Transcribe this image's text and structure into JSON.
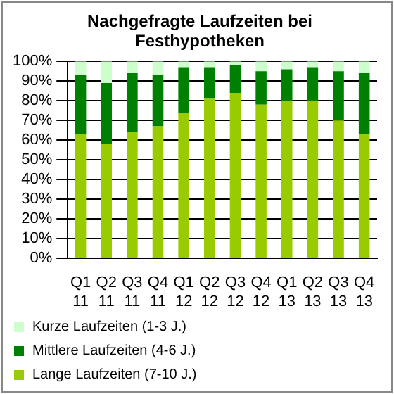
{
  "chart_data": {
    "type": "bar",
    "stacked": true,
    "title": "Nachgefragte Laufzeiten bei Festhypotheken",
    "categories": [
      "Q1 11",
      "Q2 11",
      "Q3 11",
      "Q4 11",
      "Q1 12",
      "Q2 12",
      "Q3 12",
      "Q4 12",
      "Q1 13",
      "Q2 13",
      "Q3 13",
      "Q4 13"
    ],
    "series": [
      {
        "name": "Lange Laufzeiten (7-10 J.)",
        "color": "#99cc00",
        "values": [
          63,
          58,
          64,
          67,
          74,
          81,
          84,
          78,
          80,
          80,
          70,
          63
        ]
      },
      {
        "name": "Mittlere Laufzeiten (4-6 J.)",
        "color": "#008000",
        "values": [
          30,
          31,
          30,
          26,
          23,
          16,
          14,
          17,
          16,
          17,
          25,
          31
        ]
      },
      {
        "name": "Kurze Laufzeiten (1-3 J.)",
        "color": "#ccffcc",
        "values": [
          7,
          11,
          6,
          7,
          3,
          3,
          2,
          5,
          4,
          3,
          5,
          6
        ]
      }
    ],
    "ylim": [
      0,
      100
    ],
    "yticks": [
      {
        "value": 0,
        "label": "0%"
      },
      {
        "value": 10,
        "label": "10%"
      },
      {
        "value": 20,
        "label": "20%"
      },
      {
        "value": 30,
        "label": "30%"
      },
      {
        "value": 40,
        "label": "40%"
      },
      {
        "value": 50,
        "label": "50%"
      },
      {
        "value": 60,
        "label": "60%"
      },
      {
        "value": 70,
        "label": "70%"
      },
      {
        "value": 80,
        "label": "80%"
      },
      {
        "value": 90,
        "label": "90%"
      },
      {
        "value": 100,
        "label": "100%"
      }
    ],
    "grid": "y",
    "legend": "bottom"
  }
}
